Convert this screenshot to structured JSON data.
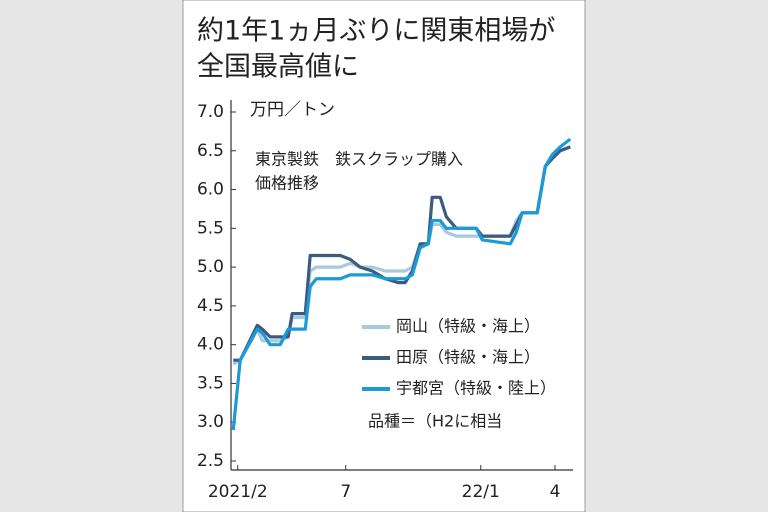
{
  "chart_data": {
    "type": "line",
    "title": [
      "約1年1ヵ月ぶりに関東相場が",
      "全国最高値に"
    ],
    "y_label": "万円／トン",
    "annotation": [
      "東京製鉄　鉄スクラップ購入",
      "価格推移"
    ],
    "note": "品種＝（H2に相当",
    "x": [
      0,
      0.31,
      1.07,
      1.29,
      1.64,
      2.09,
      2.44,
      2.62,
      3.2,
      3.42,
      3.69,
      4.76,
      5.2,
      5.64,
      6.18,
      6.76,
      7.33,
      7.64,
      7.96,
      8.31,
      8.67,
      8.84,
      9.2,
      9.47,
      9.91,
      10.8,
      11.07,
      12.31,
      12.58,
      12.84,
      13.51,
      13.87,
      14.18,
      14.53,
      14.98
    ],
    "series": [
      {
        "name": "岡山（特級・海上）",
        "color": "#a9c9dc",
        "values": [
          3.75,
          3.8,
          4.2,
          4.05,
          4.05,
          4.05,
          4.1,
          4.35,
          4.35,
          4.95,
          5.0,
          5.0,
          5.05,
          5.0,
          5.0,
          4.95,
          4.95,
          4.95,
          5.0,
          5.3,
          5.3,
          5.55,
          5.55,
          5.45,
          5.4,
          5.4,
          5.4,
          5.4,
          5.6,
          5.7,
          5.7,
          6.3,
          6.4,
          6.5,
          6.55
        ]
      },
      {
        "name": "田原（特級・海上）",
        "color": "#3d5a80",
        "values": [
          3.8,
          3.8,
          4.25,
          4.2,
          4.1,
          4.1,
          4.1,
          4.4,
          4.4,
          5.15,
          5.15,
          5.15,
          5.1,
          5.0,
          4.95,
          4.85,
          4.8,
          4.8,
          4.95,
          5.3,
          5.3,
          5.9,
          5.9,
          5.65,
          5.5,
          5.5,
          5.4,
          5.4,
          5.55,
          5.7,
          5.7,
          6.3,
          6.4,
          6.5,
          6.55
        ]
      },
      {
        "name": "宇都宮（特級・陸上）",
        "color": "#1a9bd7",
        "values": [
          2.9,
          3.8,
          4.2,
          4.15,
          4.0,
          4.0,
          4.2,
          4.2,
          4.2,
          4.75,
          4.85,
          4.85,
          4.9,
          4.9,
          4.9,
          4.85,
          4.85,
          4.85,
          4.9,
          5.25,
          5.3,
          5.6,
          5.6,
          5.5,
          5.5,
          5.5,
          5.35,
          5.3,
          5.45,
          5.7,
          5.7,
          6.3,
          6.45,
          6.55,
          6.65
        ]
      }
    ],
    "xlim": [
      -0.1,
      15.1
    ],
    "xticks": [
      {
        "value": 0.2,
        "label": "2021/2"
      },
      {
        "value": 5,
        "label": "7"
      },
      {
        "value": 11,
        "label": "22/1"
      },
      {
        "value": 14.3,
        "label": "4"
      }
    ],
    "ylim": [
      2.5,
      7.0
    ],
    "yticks": [
      {
        "value": 7,
        "label": "7.0"
      },
      6.5,
      {
        "value": 6,
        "label": "6.0"
      },
      5.5,
      {
        "value": 5,
        "label": "5.0"
      },
      4.5,
      {
        "value": 4,
        "label": "4.0"
      },
      3.5,
      {
        "value": 3,
        "label": "3.0"
      },
      2.5
    ],
    "grid": false
  }
}
